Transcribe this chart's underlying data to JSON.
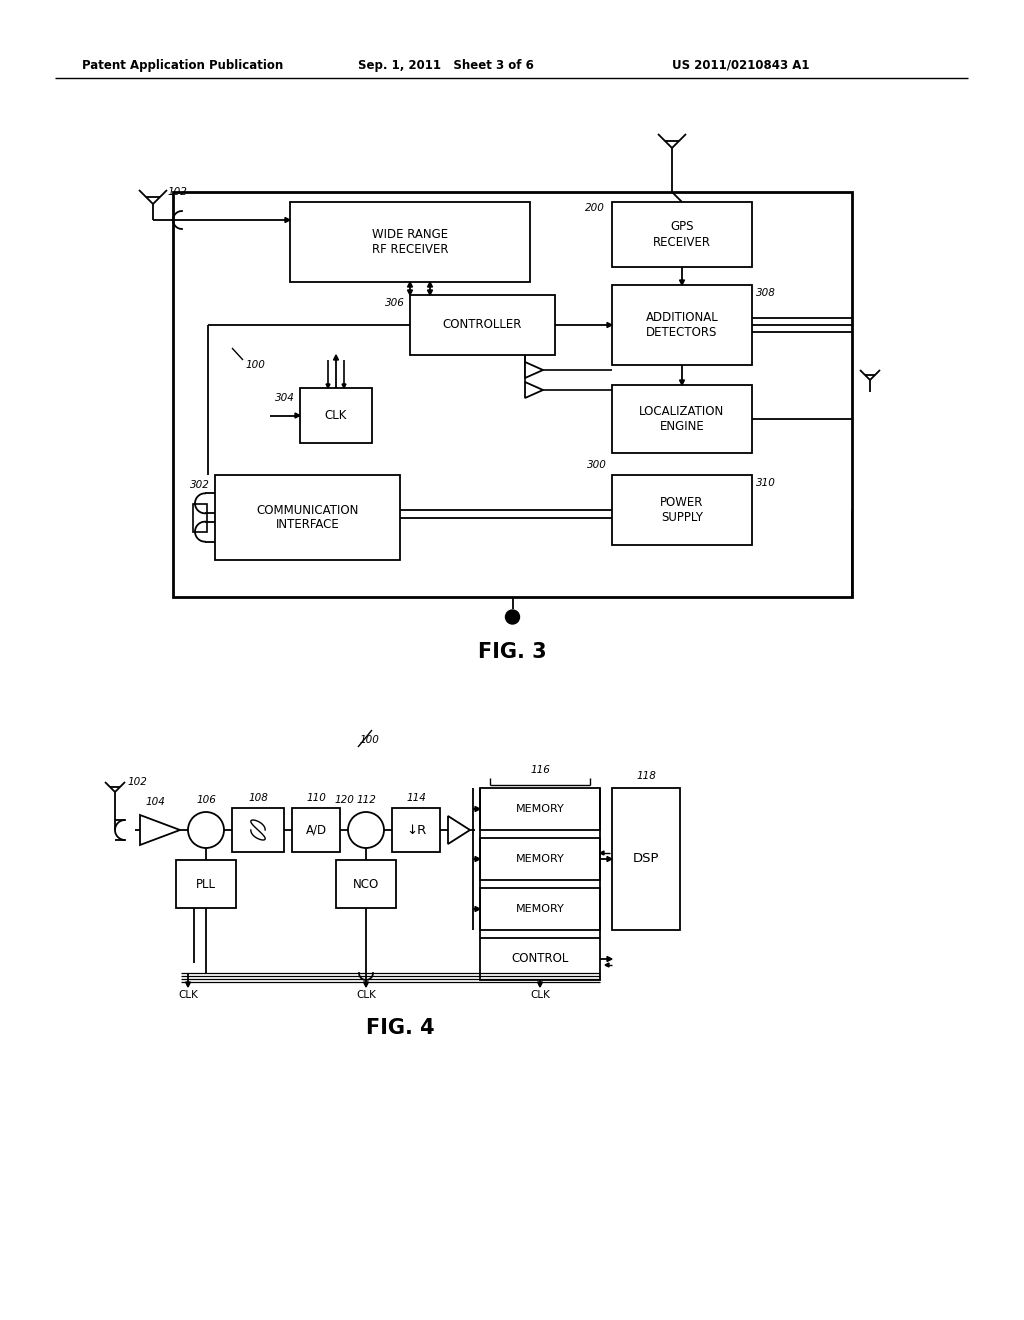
{
  "bg_color": "#ffffff",
  "header_left": "Patent Application Publication",
  "header_mid": "Sep. 1, 2011   Sheet 3 of 6",
  "header_right": "US 2011/0210843 A1",
  "fig3_label": "FIG. 3",
  "fig4_label": "FIG. 4"
}
